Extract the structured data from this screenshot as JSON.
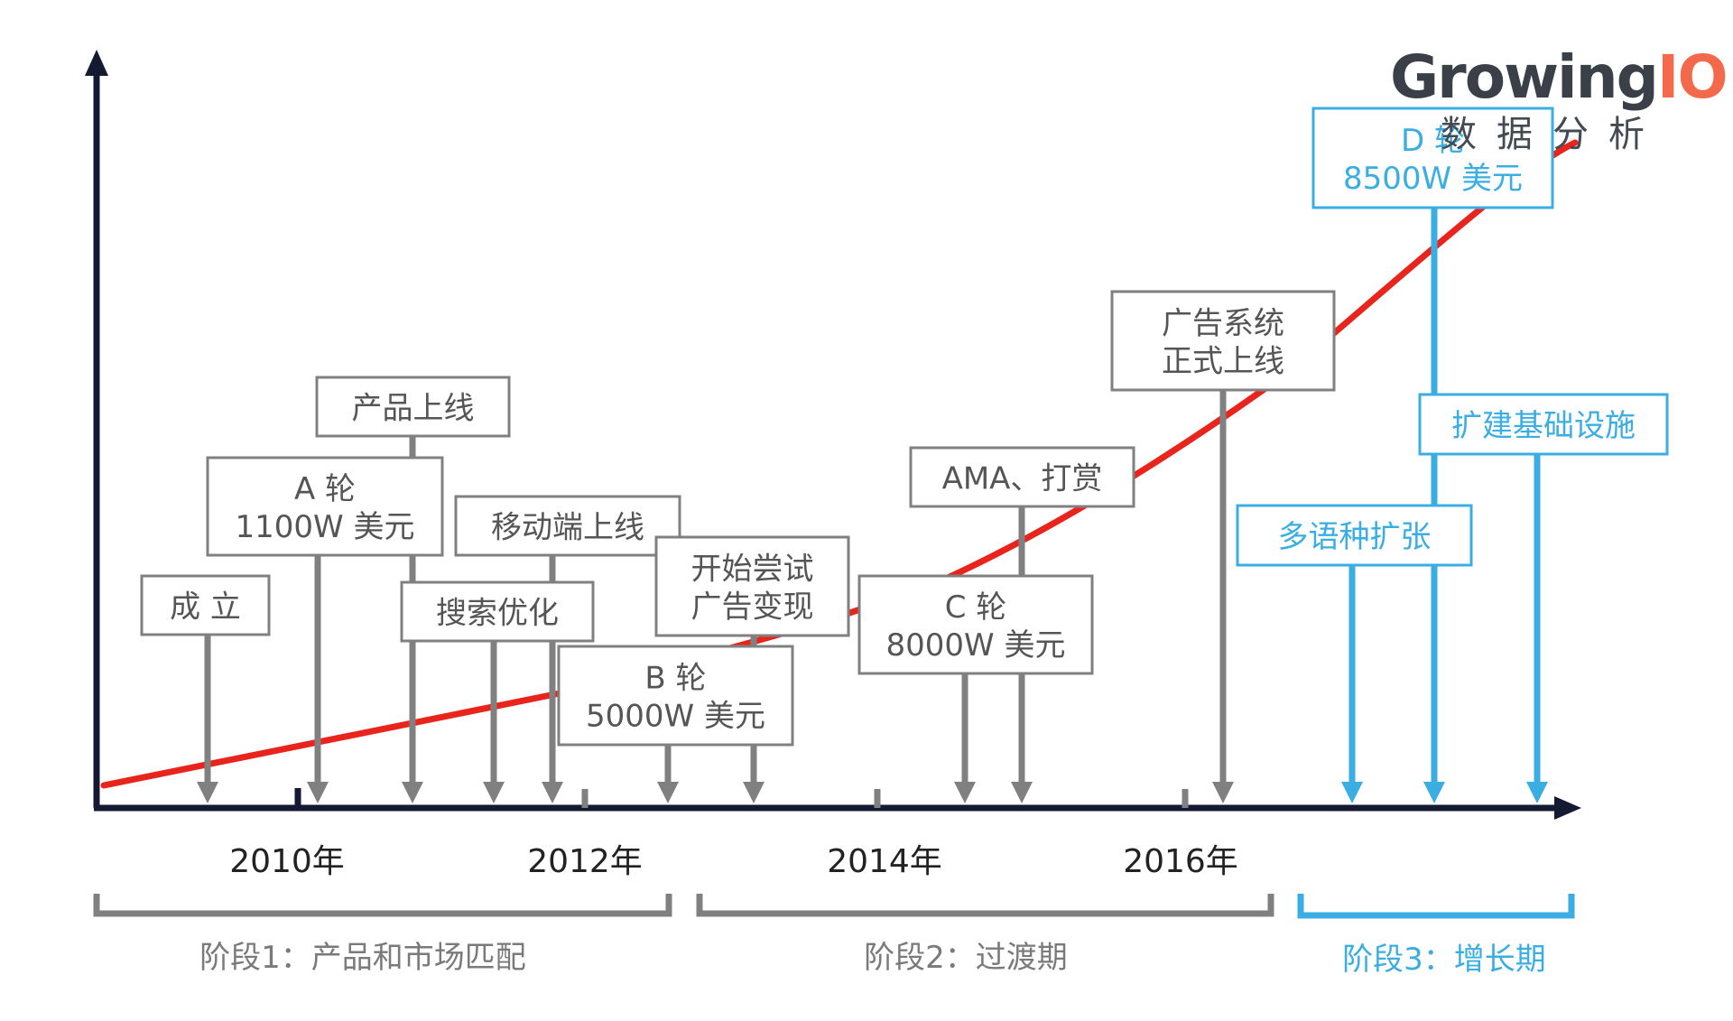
{
  "logo": {
    "word_main": "Growing",
    "word_io": "IO",
    "subtitle": "数据分析"
  },
  "colors": {
    "axis": "#151a33",
    "curve": "#e8241c",
    "grey": "#808080",
    "blue": "#3aaee3",
    "text_dark": "#222222"
  },
  "years": [
    "2010年",
    "2012年",
    "2014年",
    "2016年"
  ],
  "events": [
    {
      "id": "founded",
      "lines": [
        "成 立"
      ],
      "color": "grey"
    },
    {
      "id": "series-a",
      "lines": [
        "A 轮",
        "1100W 美元"
      ],
      "color": "grey"
    },
    {
      "id": "product-launch",
      "lines": [
        "产品上线"
      ],
      "color": "grey"
    },
    {
      "id": "search-opt",
      "lines": [
        "搜索优化"
      ],
      "color": "grey"
    },
    {
      "id": "mobile-launch",
      "lines": [
        "移动端上线"
      ],
      "color": "grey"
    },
    {
      "id": "series-b",
      "lines": [
        "B 轮",
        "5000W 美元"
      ],
      "color": "grey"
    },
    {
      "id": "ad-monetize",
      "lines": [
        "开始尝试",
        "广告变现"
      ],
      "color": "grey"
    },
    {
      "id": "series-c",
      "lines": [
        "C 轮",
        "8000W 美元"
      ],
      "color": "grey"
    },
    {
      "id": "ama-tips",
      "lines": [
        "AMA、打赏"
      ],
      "color": "grey"
    },
    {
      "id": "ad-system",
      "lines": [
        "广告系统",
        "正式上线"
      ],
      "color": "grey"
    },
    {
      "id": "multilang",
      "lines": [
        "多语种扩张"
      ],
      "color": "blue"
    },
    {
      "id": "series-d",
      "lines": [
        "D 轮",
        "8500W 美元"
      ],
      "color": "blue"
    },
    {
      "id": "infra",
      "lines": [
        "扩建基础设施"
      ],
      "color": "blue"
    }
  ],
  "phases": [
    {
      "id": "phase-1",
      "label": "阶段1：产品和市场匹配",
      "color": "grey"
    },
    {
      "id": "phase-2",
      "label": "阶段2：过渡期",
      "color": "grey"
    },
    {
      "id": "phase-3",
      "label": "阶段3：增长期",
      "color": "blue"
    }
  ]
}
